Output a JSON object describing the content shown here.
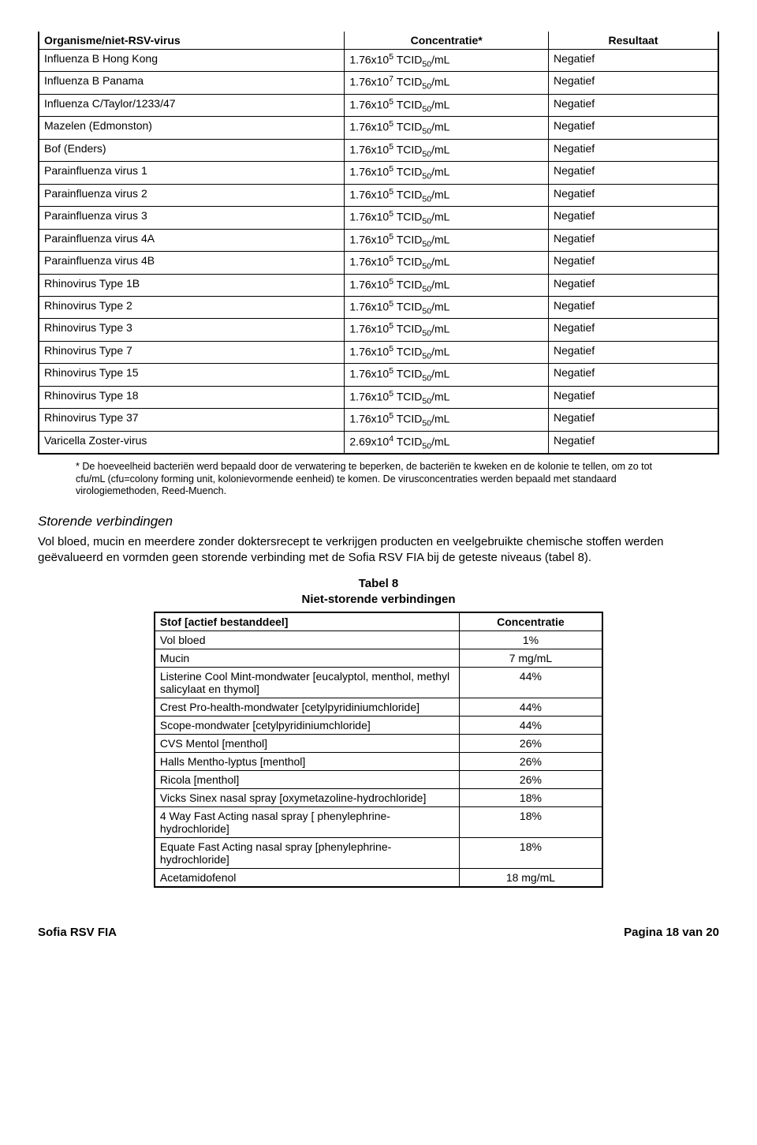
{
  "table1": {
    "headers": [
      "Organisme/niet-RSV-virus",
      "Concentratie*",
      "Resultaat"
    ],
    "rows": [
      [
        "Influenza B Hong Kong",
        {
          "base": "1.76x10",
          "exp": "5",
          "suffix": " TCID",
          "sub": "50",
          "tail": "/mL"
        },
        "Negatief"
      ],
      [
        "Influenza B Panama",
        {
          "base": "1.76x10",
          "exp": "7",
          "suffix": " TCID",
          "sub": "50",
          "tail": "/mL"
        },
        "Negatief"
      ],
      [
        "Influenza C/Taylor/1233/47",
        {
          "base": "1.76x10",
          "exp": "5",
          "suffix": " TCID",
          "sub": "50",
          "tail": "/mL"
        },
        "Negatief"
      ],
      [
        "Mazelen (Edmonston)",
        {
          "base": "1.76x10",
          "exp": "5",
          "suffix": " TCID",
          "sub": "50",
          "tail": "/mL"
        },
        "Negatief"
      ],
      [
        "Bof (Enders)",
        {
          "base": "1.76x10",
          "exp": "5",
          "suffix": " TCID",
          "sub": "50",
          "tail": "/mL"
        },
        "Negatief"
      ],
      [
        "Parainfluenza virus 1",
        {
          "base": "1.76x10",
          "exp": "5",
          "suffix": " TCID",
          "sub": "50",
          "tail": "/mL"
        },
        "Negatief"
      ],
      [
        "Parainfluenza virus 2",
        {
          "base": "1.76x10",
          "exp": "5",
          "suffix": " TCID",
          "sub": "50",
          "tail": "/mL"
        },
        "Negatief"
      ],
      [
        "Parainfluenza virus 3",
        {
          "base": "1.76x10",
          "exp": "5",
          "suffix": " TCID",
          "sub": "50",
          "tail": "/mL"
        },
        "Negatief"
      ],
      [
        "Parainfluenza virus 4A",
        {
          "base": "1.76x10",
          "exp": "5",
          "suffix": " TCID",
          "sub": "50",
          "tail": "/mL"
        },
        "Negatief"
      ],
      [
        "Parainfluenza virus 4B",
        {
          "base": "1.76x10",
          "exp": "5",
          "suffix": " TCID",
          "sub": "50",
          "tail": "/mL"
        },
        "Negatief"
      ],
      [
        "Rhinovirus Type 1B",
        {
          "base": "1.76x10",
          "exp": "5",
          "suffix": " TCID",
          "sub": "50",
          "tail": "/mL"
        },
        "Negatief"
      ],
      [
        "Rhinovirus Type 2",
        {
          "base": "1.76x10",
          "exp": "5",
          "suffix": " TCID",
          "sub": "50",
          "tail": "/mL"
        },
        "Negatief"
      ],
      [
        "Rhinovirus Type 3",
        {
          "base": "1.76x10",
          "exp": "5",
          "suffix": " TCID",
          "sub": "50",
          "tail": "/mL"
        },
        "Negatief"
      ],
      [
        "Rhinovirus Type 7",
        {
          "base": "1.76x10",
          "exp": "5",
          "suffix": " TCID",
          "sub": "50",
          "tail": "/mL"
        },
        "Negatief"
      ],
      [
        "Rhinovirus Type 15",
        {
          "base": "1.76x10",
          "exp": "5",
          "suffix": " TCID",
          "sub": "50",
          "tail": "/mL"
        },
        "Negatief"
      ],
      [
        "Rhinovirus Type 18",
        {
          "base": "1.76x10",
          "exp": "5",
          "suffix": " TCID",
          "sub": "50",
          "tail": "/mL"
        },
        "Negatief"
      ],
      [
        "Rhinovirus Type 37",
        {
          "base": "1.76x10",
          "exp": "5",
          "suffix": " TCID",
          "sub": "50",
          "tail": "/mL"
        },
        "Negatief"
      ],
      [
        "Varicella Zoster-virus",
        {
          "base": "2.69x10",
          "exp": "4",
          "suffix": " TCID",
          "sub": "50",
          "tail": "/mL"
        },
        "Negatief"
      ]
    ]
  },
  "footnote": "* De hoeveelheid bacteriën werd bepaald door de verwatering te beperken, de bacteriën te kweken en de kolonie te tellen, om zo tot cfu/mL (cfu=colony forming unit, kolonievormende eenheid) te komen. De virusconcentraties werden bepaald met standaard virologiemethoden, Reed-Muench.",
  "section_heading": "Storende verbindingen",
  "paragraph": "Vol bloed, mucin en meerdere zonder doktersrecept te verkrijgen producten en veelgebruikte chemische stoffen werden geëvalueerd en vormden geen storende verbinding met de Sofia RSV FIA bij de geteste niveaus (tabel 8).",
  "table2_caption_line1": "Tabel 8",
  "table2_caption_line2": "Niet-storende verbindingen",
  "table2": {
    "headers": [
      "Stof [actief bestanddeel]",
      "Concentratie"
    ],
    "rows": [
      [
        "Vol bloed",
        "1%"
      ],
      [
        "Mucin",
        "7 mg/mL"
      ],
      [
        "Listerine Cool Mint-mondwater [eucalyptol, menthol, methyl salicylaat en thymol]",
        "44%"
      ],
      [
        "Crest Pro-health-mondwater [cetylpyridiniumchloride]",
        "44%"
      ],
      [
        "Scope-mondwater [cetylpyridiniumchloride]",
        "44%"
      ],
      [
        "CVS Mentol [menthol]",
        "26%"
      ],
      [
        "Halls Mentho-lyptus [menthol]",
        "26%"
      ],
      [
        "Ricola [menthol]",
        "26%"
      ],
      [
        "Vicks Sinex nasal spray [oxymetazoline-hydrochloride]",
        "18%"
      ],
      [
        "4 Way Fast Acting nasal spray [ phenylephrine- hydrochloride]",
        "18%"
      ],
      [
        "Equate Fast Acting nasal spray [phenylephrine-hydrochloride]",
        "18%"
      ],
      [
        "Acetamidofenol",
        "18 mg/mL"
      ]
    ]
  },
  "footer_left": "Sofia RSV FIA",
  "footer_right": "Pagina 18 van 20"
}
